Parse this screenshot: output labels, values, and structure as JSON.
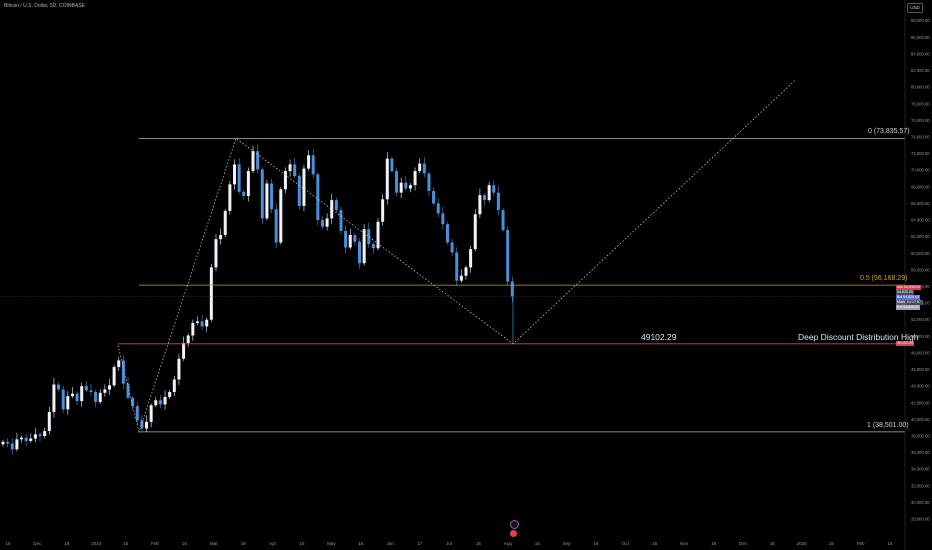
{
  "symbol": "Bitcoin / U.S. Dollar, 5D, COINBASE",
  "currency": "USD",
  "chart_data": {
    "type": "candlestick",
    "y_ticks": [
      28000,
      30000,
      32000,
      34000,
      36000,
      38000,
      40000,
      42000,
      44000,
      46000,
      48000,
      50000,
      52000,
      54000,
      56000,
      58000,
      60000,
      62000,
      64000,
      66000,
      68000,
      70000,
      72000,
      74000,
      76000,
      78000,
      80000,
      82000,
      84000,
      86000,
      88000
    ],
    "x_ticks": [
      "15",
      "Dec",
      "18",
      "2024",
      "15",
      "Feb",
      "15",
      "Mar",
      "18",
      "Apr",
      "15",
      "May",
      "15",
      "Jun",
      "17",
      "Jul",
      "15",
      "Aug",
      "15",
      "Sep",
      "16",
      "Oct",
      "15",
      "Nov",
      "15",
      "Dec",
      "16",
      "2025",
      "15",
      "Feb",
      "15"
    ],
    "fib_levels": [
      {
        "label": "0 (73,835.57)",
        "price": 73835.57,
        "color": "#b2b5be"
      },
      {
        "label": "0.5 (56,168.29)",
        "price": 56168.29,
        "color": "#d4a017"
      },
      {
        "label": "1 (38,501.00)",
        "price": 38501.0,
        "color": "#b2b5be"
      }
    ],
    "annotation": {
      "value": "49102.29",
      "text": "Deep Discount Distribution High",
      "price": 49102.29,
      "color": "#e04050"
    },
    "price_tags": [
      {
        "text": "Ask 54,835.00",
        "color": "#e03a4f"
      },
      {
        "text": "54,830.00",
        "color": "#444a5a"
      },
      {
        "text": "Bid 54,826.00",
        "color": "#5b6ee0"
      },
      {
        "text": "Mark 54,835.00",
        "color": "#5a5f6e"
      },
      {
        "text": "Ext 54,826.00",
        "color": "#9aa0b5"
      },
      {
        "text": "01:17:57",
        "color": "#444a5a"
      }
    ],
    "line_tag": {
      "text": "49,102.29",
      "color": "#e04050"
    },
    "closes": [
      37300,
      37100,
      36400,
      37600,
      37800,
      37400,
      37700,
      38200,
      38000,
      38600,
      40900,
      44200,
      43600,
      41200,
      42800,
      43100,
      42200,
      44000,
      43500,
      43300,
      42100,
      43200,
      43600,
      44100,
      46300,
      47100,
      44300,
      42600,
      41600,
      39900,
      38900,
      39700,
      41700,
      42300,
      41800,
      42700,
      43300,
      44800,
      47300,
      49200,
      50100,
      51600,
      51800,
      51200,
      52000,
      58300,
      61700,
      62200,
      65100,
      68300,
      70700,
      67400,
      66900,
      69900,
      72300,
      70100,
      64200,
      68400,
      65300,
      61300,
      67700,
      69900,
      70700,
      69300,
      65700,
      70200,
      71800,
      69500,
      64000,
      63200,
      64200,
      66400,
      65200,
      62700,
      60700,
      62200,
      61400,
      58800,
      62900,
      61100,
      60600,
      63800,
      66500,
      71400,
      69900,
      67300,
      68500,
      67800,
      68200,
      69900,
      70800,
      69600,
      67500,
      66000,
      64800,
      63500,
      61300,
      60100,
      56700,
      57300,
      58300,
      60500,
      64700,
      67000,
      66400,
      68200,
      67300,
      65200,
      62800,
      56600,
      54800
    ]
  }
}
